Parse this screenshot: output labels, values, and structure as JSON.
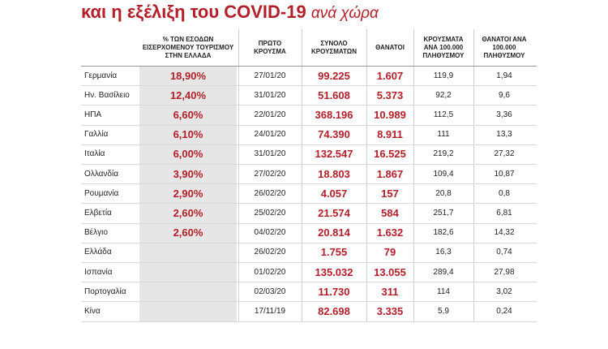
{
  "header": {
    "title": "και η εξέλιξη του COVID-19",
    "title_tail": "ανά χώρα"
  },
  "table": {
    "columns": [
      "",
      "% ΤΩΝ ΕΣΟΔΩΝ ΕΙΣΕΡΧΟΜΕΝΟΥ ΤΟΥΡΙΣΜΟΥ ΣΤΗΝ ΕΛΛΑΔΑ",
      "ΠΡΩΤΟ ΚΡΟΥΣΜΑ",
      "ΣΥΝΟΛΟ ΚΡΟΥΣΜΑΤΩΝ",
      "ΘΑΝΑΤΟΙ",
      "ΚΡΟΥΣΜΑΤΑ ΑΝΑ 100.000 ΠΛΗΘΥΣΜΟΥ",
      "ΘΑΝΑΤΟΙ ΑΝΑ 100.000 ΠΛΗΘΥΣΜΟΥ"
    ],
    "rows": [
      [
        "Γερμανία",
        "18,90%",
        "27/01/20",
        "99.225",
        "1.607",
        "119,9",
        "1,94"
      ],
      [
        "Ην. Βασίλειο",
        "12,40%",
        "31/01/20",
        "51.608",
        "5.373",
        "92,2",
        "9,6"
      ],
      [
        "ΗΠΑ",
        "6,60%",
        "22/01/20",
        "368.196",
        "10.989",
        "112,5",
        "3,36"
      ],
      [
        "Γαλλία",
        "6,10%",
        "24/01/20",
        "74.390",
        "8.911",
        "111",
        "13,3"
      ],
      [
        "Ιταλία",
        "6,00%",
        "31/01/20",
        "132.547",
        "16.525",
        "219,2",
        "27,32"
      ],
      [
        "Ολλανδία",
        "3,90%",
        "27/02/20",
        "18.803",
        "1.867",
        "109,4",
        "10,87"
      ],
      [
        "Ρουμανία",
        "2,90%",
        "26/02/20",
        "4.057",
        "157",
        "20,8",
        "0,8"
      ],
      [
        "Ελβετία",
        "2,60%",
        "25/02/20",
        "21.574",
        "584",
        "251,7",
        "6,81"
      ],
      [
        "Βέλγιο",
        "2,60%",
        "04/02/20",
        "20.814",
        "1.632",
        "182,6",
        "14,32"
      ],
      [
        "Ελλάδα",
        "",
        "26/02/20",
        "1.755",
        "79",
        "16,3",
        "0,74"
      ],
      [
        "Ισπανία",
        "",
        "01/02/20",
        "135.032",
        "13.055",
        "289,4",
        "27,98"
      ],
      [
        "Πορτογαλία",
        "",
        "02/03/20",
        "11.730",
        "311",
        "114",
        "3,02"
      ],
      [
        "Κίνα",
        "",
        "17/11/19",
        "82.698",
        "3.335",
        "5,9",
        "0,24"
      ]
    ]
  }
}
